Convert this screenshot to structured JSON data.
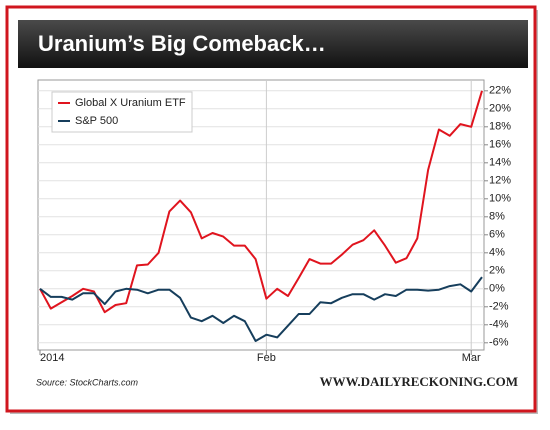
{
  "chart_data": {
    "type": "line",
    "title": "Uranium’s Big Comeback…",
    "source": "Source: StockCharts.com",
    "credit": "WWW.DAILYRECKONING.COM",
    "categories": [
      "2014",
      null,
      null,
      null,
      null,
      null,
      null,
      null,
      null,
      null,
      null,
      null,
      null,
      null,
      null,
      null,
      null,
      null,
      null,
      null,
      null,
      "Feb",
      null,
      null,
      null,
      null,
      null,
      null,
      null,
      null,
      null,
      null,
      null,
      null,
      null,
      null,
      null,
      null,
      null,
      null,
      "Mar",
      null
    ],
    "series": [
      {
        "name": "Global X Uranium ETF",
        "color": "#e0141e",
        "values": [
          0,
          -2.2,
          -1.5,
          -0.8,
          0,
          -0.3,
          -2.6,
          -1.8,
          -1.6,
          2.6,
          2.7,
          4,
          8.6,
          9.8,
          8.5,
          5.6,
          6.2,
          5.8,
          4.8,
          4.8,
          3.3,
          -1.1,
          0,
          -0.8,
          1.2,
          3.3,
          2.8,
          2.8,
          3.8,
          4.9,
          5.4,
          6.5,
          4.8,
          2.9,
          3.4,
          5.6,
          13.2,
          17.7,
          17,
          18.3,
          18,
          22
        ]
      },
      {
        "name": "S&P 500",
        "color": "#163e5c",
        "values": [
          0,
          -0.9,
          -0.9,
          -1.2,
          -0.5,
          -0.5,
          -1.7,
          -0.3,
          0,
          -0.1,
          -0.5,
          -0.1,
          -0.1,
          -1,
          -3.2,
          -3.6,
          -3,
          -3.8,
          -3,
          -3.6,
          -5.8,
          -5.1,
          -5.4,
          -4.1,
          -2.8,
          -2.8,
          -1.5,
          -1.6,
          -1,
          -0.6,
          -0.6,
          -1.2,
          -0.6,
          -0.8,
          -0.1,
          -0.1,
          -0.2,
          -0.1,
          0.3,
          0.5,
          -0.3,
          1.3
        ]
      }
    ],
    "ylim": [
      -6.8,
      23.2
    ],
    "yticks": [
      {
        "value": -6,
        "label": "-6%"
      },
      {
        "value": -4,
        "label": "-4%"
      },
      {
        "value": -2,
        "label": "-2%"
      },
      {
        "value": 0,
        "label": "0%"
      },
      {
        "value": 2,
        "label": "2%"
      },
      {
        "value": 4,
        "label": "4%"
      },
      {
        "value": 6,
        "label": "6%"
      },
      {
        "value": 8,
        "label": "8%"
      },
      {
        "value": 10,
        "label": "10%"
      },
      {
        "value": 12,
        "label": "12%"
      },
      {
        "value": 14,
        "label": "14%"
      },
      {
        "value": 16,
        "label": "16%"
      },
      {
        "value": 18,
        "label": "18%"
      },
      {
        "value": 20,
        "label": "20%"
      },
      {
        "value": 22,
        "label": "22%"
      }
    ],
    "grid": true,
    "legend": "top-left"
  }
}
